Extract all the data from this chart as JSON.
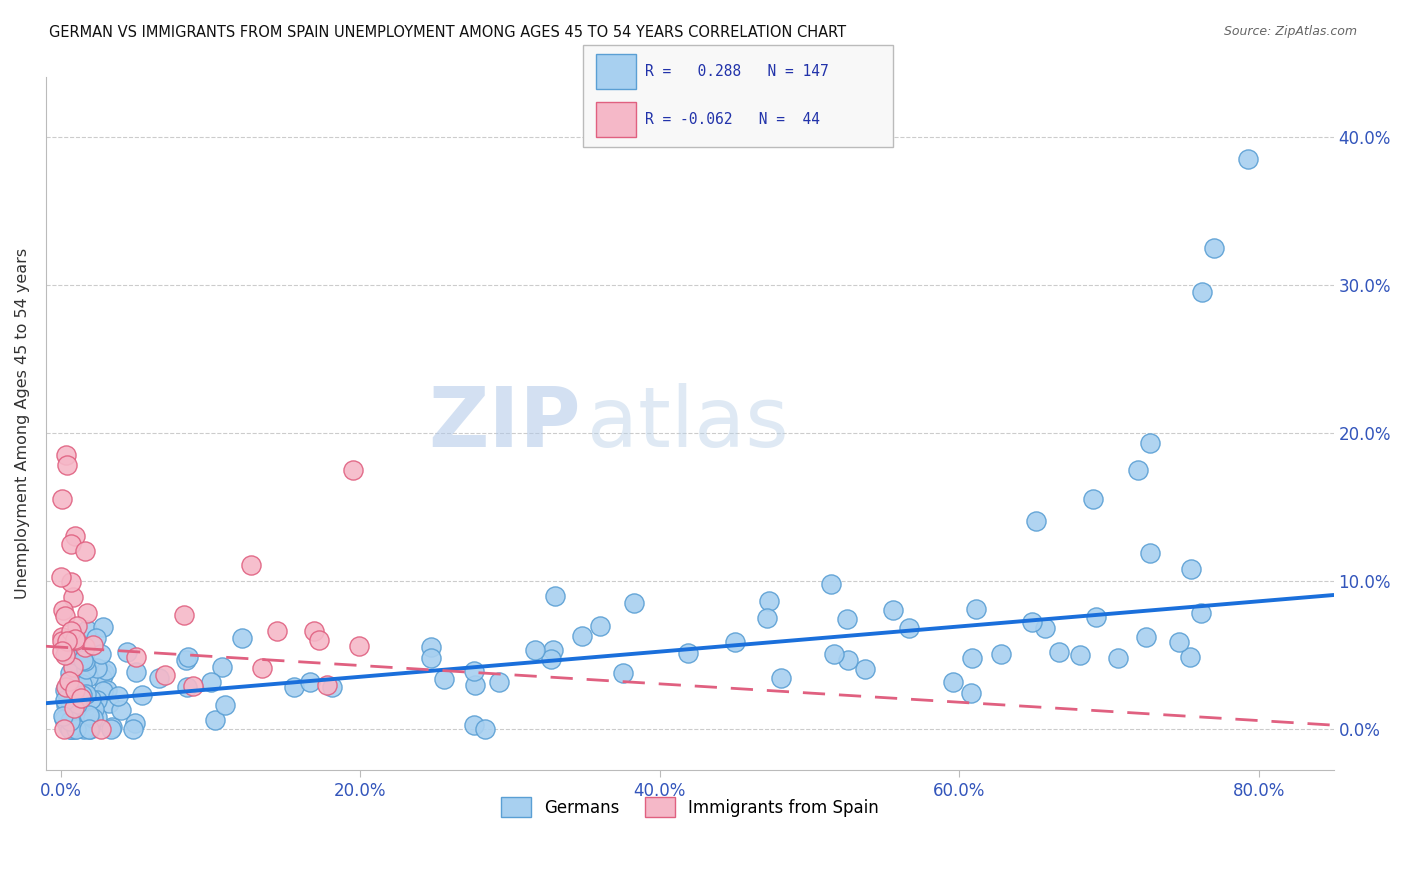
{
  "title": "GERMAN VS IMMIGRANTS FROM SPAIN UNEMPLOYMENT AMONG AGES 45 TO 54 YEARS CORRELATION CHART",
  "source": "Source: ZipAtlas.com",
  "xlabel_tick_vals": [
    0.0,
    0.2,
    0.4,
    0.6,
    0.8
  ],
  "ylabel_tick_vals": [
    0.0,
    0.1,
    0.2,
    0.3,
    0.4
  ],
  "ylabel": "Unemployment Among Ages 45 to 54 years",
  "watermark_zip": "ZIP",
  "watermark_atlas": "atlas",
  "legend_label_german": "Germans",
  "legend_label_spain": "Immigrants from Spain",
  "german_color": "#a8d0f0",
  "german_edge_color": "#5a9fd4",
  "spain_color": "#f5b8c8",
  "spain_edge_color": "#e06080",
  "german_line_color": "#1a6fdb",
  "spain_line_color": "#e06080",
  "xlim": [
    -0.01,
    0.85
  ],
  "ylim": [
    -0.028,
    0.44
  ],
  "german_R": 0.288,
  "german_N": 147,
  "spain_R": -0.062,
  "spain_N": 44,
  "german_slope": 0.085,
  "german_intercept": 0.018,
  "spain_slope": -0.062,
  "spain_intercept": 0.055
}
